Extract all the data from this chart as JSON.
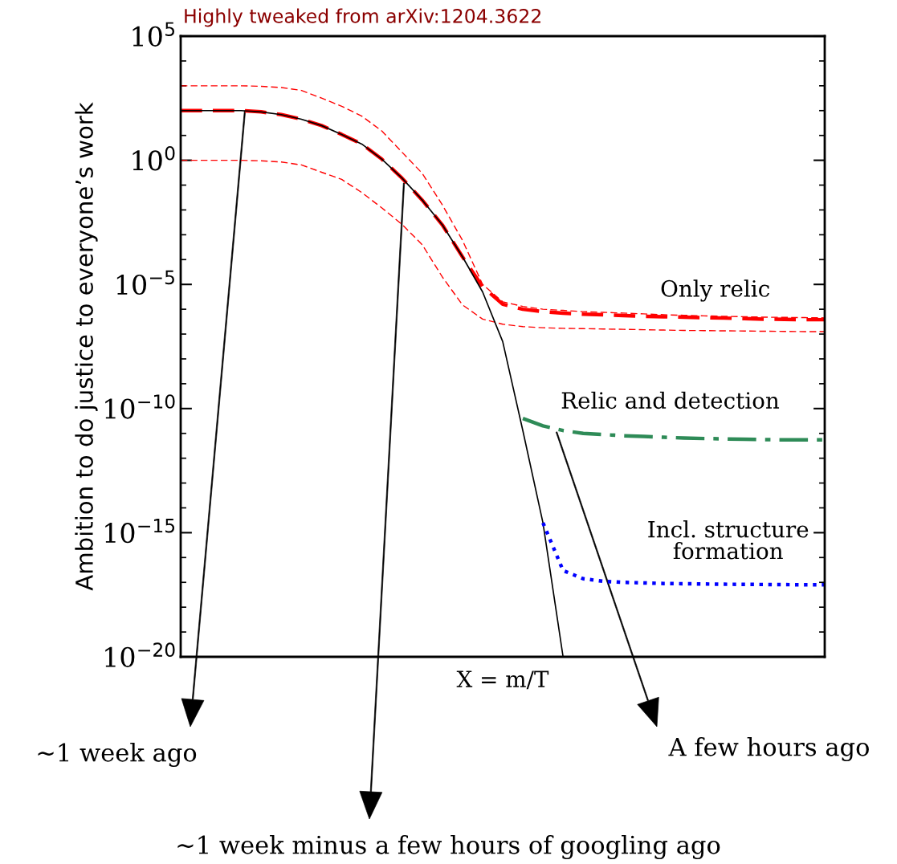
{
  "chart_data": {
    "type": "line",
    "title": "Highly tweaked from arXiv:1204.3622",
    "xlabel": "X = m/T",
    "ylabel": "Ambition to do justice to everyone’s work",
    "categories": [
      null,
      null,
      null,
      null,
      null,
      null,
      null,
      null,
      null,
      null,
      null,
      null,
      null,
      null,
      null,
      null,
      null,
      null,
      null,
      null,
      null,
      null,
      null,
      null,
      null,
      null,
      null,
      null,
      null,
      null,
      null,
      null,
      null
    ],
    "log": "y",
    "ylim": [
      1e-20,
      100000.0
    ],
    "yticks": [
      {
        "value": 1e-20,
        "label": "10$^{−20}$"
      },
      {
        "value": 1e-15,
        "label": "10$^{−15}$"
      },
      {
        "value": 1e-10,
        "label": "10$^{−10}$"
      },
      {
        "value": 1e-05,
        "label": "10$^{−5}$"
      },
      {
        "value": 1,
        "label": "10$^{0}$"
      },
      {
        "value": 100000.0,
        "label": "10$^{5}$"
      }
    ],
    "tick_labels": "y",
    "grid": false,
    "legend": false,
    "series": [
      {
        "color": "#ff0000",
        "line_style": "dashed",
        "values": [
          1000,
          1000,
          1000,
          1000,
          950,
          850,
          650,
          320,
          150,
          60,
          15,
          2.1,
          0.3,
          0.016,
          0.0006,
          1e-05,
          2e-06,
          1.3e-06,
          1e-06,
          9e-07,
          8e-07,
          7.5e-07,
          7e-07,
          6.5e-07,
          6e-07,
          5.7e-07,
          5.4e-07,
          5.2e-07,
          5e-07,
          4.8e-07,
          4.7e-07,
          4.6e-07,
          4.5e-07
        ]
      },
      {
        "color": "#ff0000",
        "line_style": "dashed",
        "values": [
          1,
          1,
          1,
          1,
          0.95,
          0.85,
          0.65,
          0.33,
          0.17,
          0.05,
          0.012,
          0.0026,
          0.0004,
          2e-05,
          1.5e-06,
          4e-07,
          2.5e-07,
          2e-07,
          1.8e-07,
          1.7e-07,
          1.65e-07,
          1.6e-07,
          1.55e-07,
          1.5e-07,
          1.45e-07,
          1.4e-07,
          1.38e-07,
          1.35e-07,
          1.33e-07,
          1.3e-07,
          1.28e-07,
          1.26e-07,
          1.25e-07
        ]
      },
      {
        "name": "Only relic",
        "color": "#ff0000",
        "line_style": "dashed",
        "values": [
          100,
          100,
          100,
          100,
          89,
          69,
          45,
          25,
          11,
          4.5,
          1.1,
          0.19,
          0.025,
          0.0025,
          0.00013,
          8e-06,
          1.6e-06,
          1e-06,
          8e-07,
          7e-07,
          6.3e-07,
          6e-07,
          5.6e-07,
          5.2e-07,
          5e-07,
          4.8e-07,
          4.6e-07,
          4.4e-07,
          4.2e-07,
          4e-07,
          3.9e-07,
          3.8e-07,
          3.8e-07
        ]
      },
      {
        "color": "#000000",
        "line_style": "solid",
        "values": [
          100,
          100,
          100,
          100,
          89,
          69,
          45,
          25,
          11,
          4.5,
          1.1,
          0.19,
          0.025,
          0.0025,
          0.00013,
          5e-06,
          5e-08,
          1.3e-11,
          2.5e-15,
          1e-20,
          null,
          null,
          null,
          null,
          null,
          null,
          null,
          null,
          null,
          null,
          null,
          null,
          null
        ]
      },
      {
        "name": "Relic and detection",
        "color": "#2e8b57",
        "line_style": "dashdot",
        "values": [
          null,
          null,
          null,
          null,
          null,
          null,
          null,
          null,
          null,
          null,
          null,
          null,
          null,
          null,
          null,
          null,
          null,
          4e-11,
          2e-11,
          1.3e-11,
          1e-11,
          9e-12,
          8e-12,
          7.5e-12,
          7e-12,
          6.5e-12,
          6.2e-12,
          6e-12,
          5.8e-12,
          5.6e-12,
          5.5e-12,
          5.5e-12,
          5.5e-12
        ]
      },
      {
        "name": "Incl. structure\nformation",
        "color": "#0000ff",
        "line_style": "dotted",
        "values": [
          null,
          null,
          null,
          null,
          null,
          null,
          null,
          null,
          null,
          null,
          null,
          null,
          null,
          null,
          null,
          null,
          null,
          null,
          2.5e-15,
          3e-17,
          1.4e-17,
          1.1e-17,
          1e-17,
          9.5e-18,
          9e-18,
          8.8e-18,
          8.6e-18,
          8.4e-18,
          8.3e-18,
          8.2e-18,
          8.1e-18,
          8e-18,
          8e-18
        ]
      }
    ],
    "annotations": [
      "~1 week ago",
      "~1 week minus a few hours of googling ago",
      "A few hours ago"
    ]
  }
}
